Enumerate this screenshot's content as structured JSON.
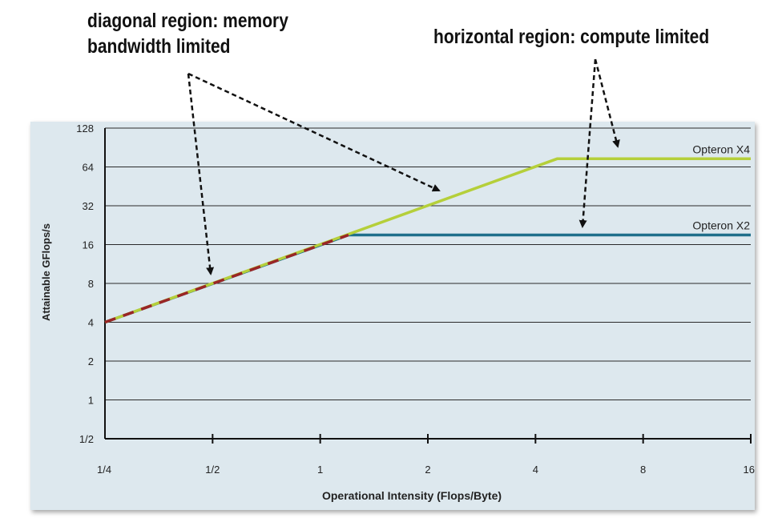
{
  "annotations": {
    "diagonal_line1": "diagonal region: memory",
    "diagonal_line2": "bandwidth limited",
    "horizontal": "horizontal region: compute limited"
  },
  "colors": {
    "panel_bg": "#dde8ee",
    "grid": "#2a2a2a",
    "x4_line": "#b5cf3a",
    "x2_line": "#1f6f8b",
    "x2_dash": "#9a2626",
    "arrow": "#111111"
  },
  "chart_data": {
    "type": "line",
    "title": "",
    "xlabel": "Operational Intensity (Flops/Byte)",
    "ylabel": "Attainable GFlops/s",
    "x_scale": "log2",
    "y_scale": "log2",
    "xlim": [
      0.25,
      16
    ],
    "ylim": [
      0.5,
      128
    ],
    "x_ticks": [
      0.25,
      0.5,
      1,
      2,
      4,
      8,
      16
    ],
    "x_tick_labels": [
      "1/4",
      "1/2",
      "1",
      "2",
      "4",
      "8",
      "16"
    ],
    "y_ticks": [
      0.5,
      1,
      2,
      4,
      8,
      16,
      32,
      64,
      128
    ],
    "y_tick_labels": [
      "1/2",
      "1",
      "2",
      "4",
      "8",
      "16",
      "32",
      "64",
      "128"
    ],
    "grid": "horizontal",
    "series": [
      {
        "name": "Opteron X4",
        "x": [
          0.25,
          4.6,
          16
        ],
        "y": [
          4,
          74,
          74
        ]
      },
      {
        "name": "Opteron X2",
        "x": [
          0.25,
          1.2,
          16
        ],
        "y": [
          4,
          19,
          19
        ]
      }
    ]
  }
}
